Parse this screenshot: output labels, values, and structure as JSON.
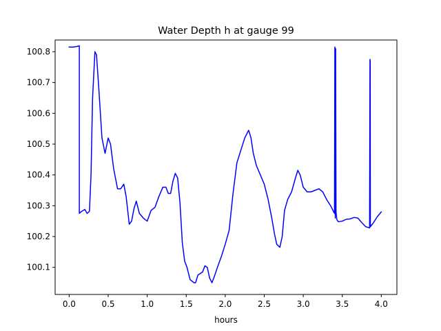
{
  "chart_data": {
    "type": "line",
    "title": "Water Depth h at gauge 99",
    "xlabel": "hours",
    "ylabel": "",
    "xlim": [
      -0.18,
      4.2
    ],
    "ylim": [
      100.012,
      100.838
    ],
    "xticks": [
      0.0,
      0.5,
      1.0,
      1.5,
      2.0,
      2.5,
      3.0,
      3.5,
      4.0
    ],
    "xtick_labels": [
      "0.0",
      "0.5",
      "1.0",
      "1.5",
      "2.0",
      "2.5",
      "3.0",
      "3.5",
      "4.0"
    ],
    "yticks": [
      100.1,
      100.2,
      100.3,
      100.4,
      100.5,
      100.6,
      100.7,
      100.8
    ],
    "ytick_labels": [
      "100.1",
      "100.2",
      "100.3",
      "100.4",
      "100.5",
      "100.6",
      "100.7",
      "100.8"
    ],
    "grid": false,
    "series": [
      {
        "color": "#0000ff",
        "x": [
          0.0,
          0.05,
          0.1,
          0.13,
          0.13,
          0.15,
          0.2,
          0.23,
          0.26,
          0.28,
          0.3,
          0.33,
          0.35,
          0.38,
          0.42,
          0.46,
          0.5,
          0.53,
          0.57,
          0.62,
          0.66,
          0.7,
          0.73,
          0.77,
          0.8,
          0.83,
          0.86,
          0.9,
          0.95,
          1.0,
          1.05,
          1.1,
          1.15,
          1.2,
          1.24,
          1.27,
          1.3,
          1.33,
          1.36,
          1.39,
          1.42,
          1.45,
          1.48,
          1.51,
          1.55,
          1.6,
          1.62,
          1.65,
          1.68,
          1.71,
          1.74,
          1.77,
          1.8,
          1.83,
          1.86,
          1.9,
          1.95,
          2.0,
          2.05,
          2.1,
          2.15,
          2.2,
          2.25,
          2.3,
          2.33,
          2.36,
          2.4,
          2.45,
          2.5,
          2.55,
          2.6,
          2.63,
          2.66,
          2.7,
          2.73,
          2.76,
          2.8,
          2.85,
          2.9,
          2.93,
          2.96,
          3.0,
          3.05,
          3.1,
          3.15,
          3.2,
          3.25,
          3.3,
          3.35,
          3.4,
          3.405,
          3.408,
          3.41,
          3.415,
          3.42,
          3.43,
          3.45,
          3.5,
          3.55,
          3.6,
          3.65,
          3.7,
          3.75,
          3.8,
          3.85,
          3.855,
          3.858,
          3.86,
          3.87,
          3.9,
          3.95,
          4.0
        ],
        "y": [
          100.815,
          100.815,
          100.817,
          100.819,
          100.275,
          100.28,
          100.288,
          100.275,
          100.282,
          100.4,
          100.65,
          100.8,
          100.79,
          100.68,
          100.52,
          100.47,
          100.52,
          100.5,
          100.42,
          100.355,
          100.355,
          100.37,
          100.33,
          100.24,
          100.25,
          100.29,
          100.315,
          100.275,
          100.26,
          100.25,
          100.285,
          100.295,
          100.33,
          100.36,
          100.36,
          100.34,
          100.34,
          100.38,
          100.405,
          100.39,
          100.31,
          100.18,
          100.12,
          100.1,
          100.06,
          100.05,
          100.05,
          100.075,
          100.08,
          100.085,
          100.105,
          100.1,
          100.065,
          100.05,
          100.07,
          100.1,
          100.135,
          100.175,
          100.22,
          100.34,
          100.44,
          100.48,
          100.52,
          100.545,
          100.52,
          100.47,
          100.43,
          100.4,
          100.37,
          100.32,
          100.255,
          100.21,
          100.175,
          100.165,
          100.2,
          100.285,
          100.32,
          100.345,
          100.39,
          100.415,
          100.4,
          100.36,
          100.345,
          100.345,
          100.35,
          100.355,
          100.345,
          100.32,
          100.3,
          100.275,
          100.815,
          100.81,
          100.26,
          100.81,
          100.28,
          100.255,
          100.248,
          100.25,
          100.256,
          100.257,
          100.262,
          100.26,
          100.245,
          100.232,
          100.228,
          100.775,
          100.77,
          100.232,
          100.235,
          100.245,
          100.265,
          100.28
        ]
      }
    ]
  }
}
